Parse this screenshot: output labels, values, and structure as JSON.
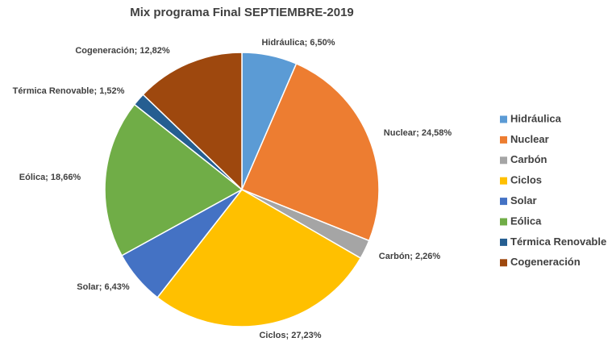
{
  "chart_data": {
    "type": "pie",
    "title": "Mix programa Final SEPTIEMBRE-2019",
    "categories": [
      "Hidráulica",
      "Nuclear",
      "Carbón",
      "Ciclos",
      "Solar",
      "Eólica",
      "Térmica Renovable",
      "Cogeneración"
    ],
    "values": [
      6.5,
      24.58,
      2.26,
      27.23,
      6.43,
      18.66,
      1.52,
      12.82
    ],
    "value_labels": [
      "Hidráulica; 6,50%",
      "Nuclear; 24,58%",
      "Carbón; 2,26%",
      "Ciclos; 27,23%",
      "Solar; 6,43%",
      "Eólica; 18,66%",
      "Térmica Renovable; 1,52%",
      "Cogeneración; 12,82%"
    ],
    "colors": [
      "#5b9bd5",
      "#ed7d31",
      "#a5a5a5",
      "#ffc000",
      "#4472c4",
      "#70ad47",
      "#255e91",
      "#9e480e"
    ],
    "legend": "right"
  }
}
